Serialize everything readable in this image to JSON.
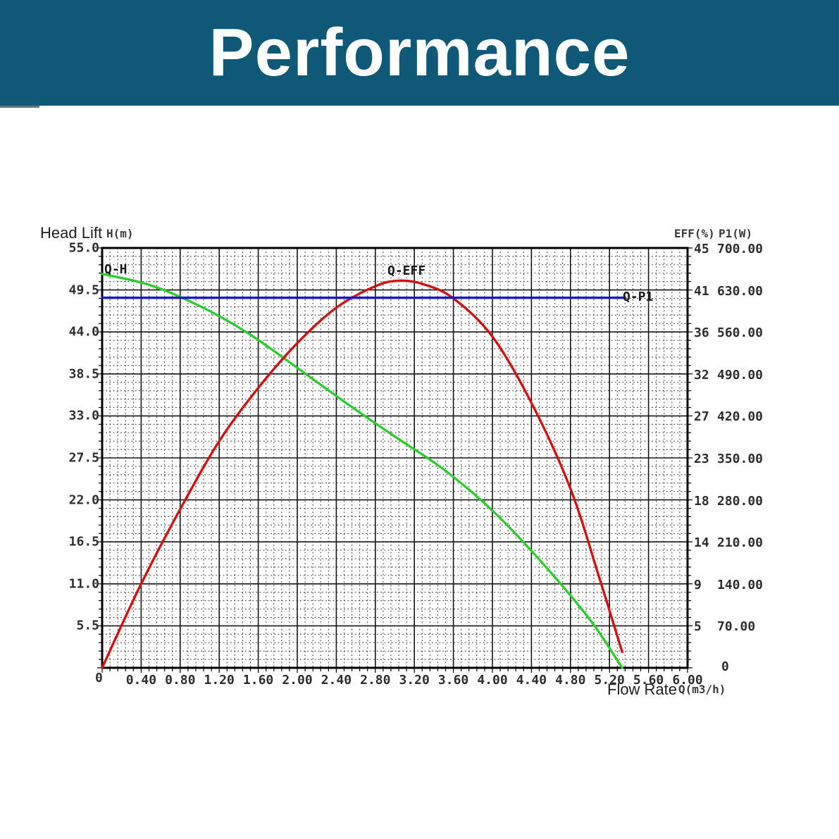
{
  "header": {
    "title": "Performance"
  },
  "colors": {
    "header_bg": "#0f5878",
    "qh_green": "#2ecc2e",
    "qeff_red": "#d01414",
    "qp1_blue": "#1717cf",
    "grid_major": "#161616",
    "grid_minor": "#434343",
    "plot_border": "#000000"
  },
  "chart_data": {
    "type": "line",
    "title": "Performance",
    "x_axis": {
      "label": "Flow Rate",
      "unit": "Q(m3/h)",
      "min": 0,
      "max": 6,
      "origin_label": "0",
      "tick_labels": [
        "0.40",
        "0.80",
        "1.20",
        "1.60",
        "2.00",
        "2.40",
        "2.80",
        "3.20",
        "3.60",
        "4.00",
        "4.40",
        "4.80",
        "5.20",
        "5.60",
        "6.00"
      ]
    },
    "left_axis": {
      "label": "Head Lift",
      "unit": "H(m)",
      "min": 0,
      "max": 55,
      "tick_labels": [
        "55.0",
        "49.5",
        "44.0",
        "38.5",
        "33.0",
        "27.5",
        "22.0",
        "16.5",
        "11.0",
        "5.5"
      ]
    },
    "right_axis": {
      "eff_header": "EFF(%)",
      "p1_header": "P1(W)",
      "eff_min": 0,
      "eff_max": 45,
      "p1_min": 0,
      "p1_max": 700,
      "zero_label": "0",
      "eff_tick_labels": [
        "45",
        "41",
        "36",
        "32",
        "27",
        "23",
        "18",
        "14",
        "9",
        "5"
      ],
      "p1_tick_labels": [
        "700.00",
        "630.00",
        "560.00",
        "490.00",
        "420.00",
        "350.00",
        "280.00",
        "210.00",
        "140.00",
        "70.00"
      ]
    },
    "grid": {
      "grid_on": true,
      "cols": 15,
      "rows": 10,
      "minor_div": 5
    },
    "legend_position": "labels-on-curves",
    "series": [
      {
        "name": "Q-H",
        "axis": "left",
        "color_key": "qh_green",
        "points": [
          [
            0,
            51.6
          ],
          [
            0.5,
            50.1
          ],
          [
            1.0,
            47.4
          ],
          [
            1.5,
            43.8
          ],
          [
            2.0,
            39.3
          ],
          [
            2.5,
            34.7
          ],
          [
            3.0,
            30.3
          ],
          [
            3.5,
            26.0
          ],
          [
            4.0,
            20.6
          ],
          [
            4.5,
            13.9
          ],
          [
            5.0,
            6.3
          ],
          [
            5.33,
            0
          ]
        ]
      },
      {
        "name": "Q-EFF",
        "axis": "eff",
        "color_key": "qeff_red",
        "points": [
          [
            0,
            0
          ],
          [
            0.4,
            9.0
          ],
          [
            0.8,
            17.0
          ],
          [
            1.2,
            24.3
          ],
          [
            1.6,
            30.0
          ],
          [
            2.0,
            34.8
          ],
          [
            2.4,
            38.6
          ],
          [
            2.8,
            40.9
          ],
          [
            3.05,
            41.5
          ],
          [
            3.3,
            41.1
          ],
          [
            3.6,
            39.6
          ],
          [
            4.0,
            35.5
          ],
          [
            4.4,
            28.4
          ],
          [
            4.8,
            19.2
          ],
          [
            5.1,
            9.5
          ],
          [
            5.33,
            1.7
          ]
        ]
      },
      {
        "name": "Q-P1",
        "axis": "p1",
        "color_key": "qp1_blue",
        "points": [
          [
            0,
            617
          ],
          [
            2.7,
            617
          ],
          [
            5.36,
            617
          ]
        ]
      }
    ]
  }
}
